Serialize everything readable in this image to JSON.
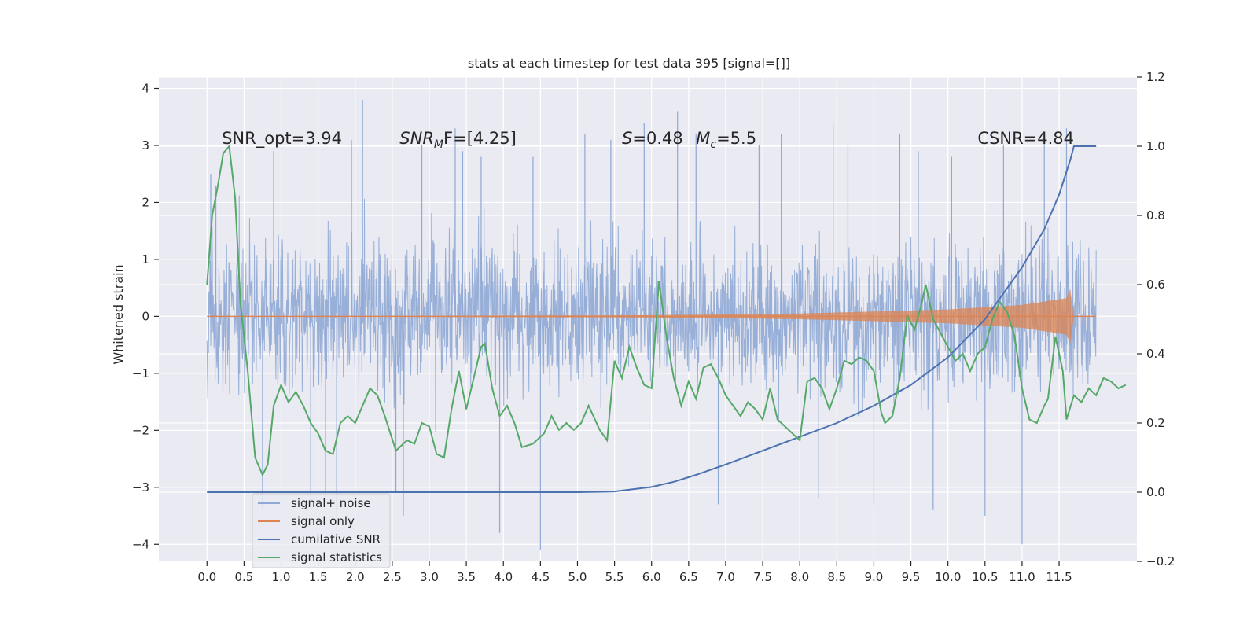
{
  "chart_data": {
    "type": "line",
    "title": "stats at each timestep for test data 395 [signal=[]]",
    "ylabel": "Whitened strain",
    "ylim": [
      -4.3,
      4.2
    ],
    "y2lim": [
      -0.2,
      1.2
    ],
    "xlim": [
      -0.65,
      12.55
    ],
    "xticks": [
      "0.0",
      "0.5",
      "1.0",
      "1.5",
      "2.0",
      "2.5",
      "3.0",
      "3.5",
      "4.0",
      "4.5",
      "5.0",
      "5.5",
      "6.0",
      "6.5",
      "7.0",
      "7.5",
      "8.0",
      "8.5",
      "9.0",
      "9.5",
      "10.0",
      "10.5",
      "11.0",
      "11.5"
    ],
    "yticks": [
      "4",
      "3",
      "2",
      "1",
      "0",
      "−1",
      "−2",
      "−3",
      "−4"
    ],
    "y2ticks": [
      "1.2",
      "1.0",
      "0.8",
      "0.6",
      "0.4",
      "0.2",
      "0.0",
      "−0.2"
    ],
    "grid": true,
    "legend_placement": "lower-left",
    "annotations": [
      {
        "x": 0.2,
        "y": 3.0,
        "text": "SNR_opt=3.94",
        "italic": false
      },
      {
        "x": 2.6,
        "y": 3.0,
        "text": "SNR",
        "sub": "M",
        "after": "F=[4.25]",
        "italic": true
      },
      {
        "x": 5.6,
        "y": 3.0,
        "text": "S",
        "after": "=0.48",
        "italic": true
      },
      {
        "x": 6.6,
        "y": 3.0,
        "text": "M",
        "sub": "c",
        "after": "=5.5",
        "italic": true
      },
      {
        "x": 10.4,
        "y": 3.0,
        "text": "CSNR=4.84",
        "italic": false
      }
    ],
    "series": [
      {
        "name": "signal+ noise",
        "color": "#8fa8d4",
        "axis": "left",
        "x_range": [
          0.0,
          12.0
        ],
        "envelope": {
          "upper_typical": 1.8,
          "lower_typical": -1.9,
          "max": 3.83,
          "min": -4.1
        },
        "spikes": [
          [
            0.05,
            2.5
          ],
          [
            0.12,
            2.3
          ],
          [
            0.75,
            -3.4
          ],
          [
            0.9,
            2.9
          ],
          [
            1.4,
            -3.3
          ],
          [
            1.6,
            -3.3
          ],
          [
            1.75,
            -3.7
          ],
          [
            1.95,
            3.1
          ],
          [
            2.1,
            3.8
          ],
          [
            2.55,
            -3.1
          ],
          [
            2.65,
            -3.5
          ],
          [
            2.9,
            3.0
          ],
          [
            3.35,
            3.3
          ],
          [
            3.45,
            2.9
          ],
          [
            3.7,
            2.8
          ],
          [
            3.95,
            -3.8
          ],
          [
            4.4,
            2.8
          ],
          [
            4.5,
            -4.1
          ],
          [
            5.1,
            3.2
          ],
          [
            5.45,
            3.1
          ],
          [
            5.9,
            3.4
          ],
          [
            6.35,
            3.6
          ],
          [
            6.6,
            3.2
          ],
          [
            6.9,
            -3.3
          ],
          [
            7.45,
            3.0
          ],
          [
            7.75,
            3.2
          ],
          [
            8.25,
            -3.2
          ],
          [
            8.45,
            3.4
          ],
          [
            8.65,
            3.0
          ],
          [
            9.0,
            -3.3
          ],
          [
            9.35,
            3.2
          ],
          [
            9.6,
            2.9
          ],
          [
            9.8,
            -3.4
          ],
          [
            10.05,
            2.8
          ],
          [
            10.5,
            -3.5
          ],
          [
            10.75,
            3.0
          ],
          [
            11.0,
            -4.0
          ],
          [
            11.3,
            3.1
          ],
          [
            11.6,
            3.3
          ]
        ]
      },
      {
        "name": "signal only",
        "color": "#dd8452",
        "axis": "left",
        "description_points": [
          [
            0.0,
            0.0
          ],
          [
            6.0,
            0.02
          ],
          [
            8.0,
            0.05
          ],
          [
            10.0,
            0.12
          ],
          [
            11.0,
            0.2
          ],
          [
            11.6,
            0.32
          ],
          [
            11.65,
            0.48
          ],
          [
            11.7,
            0.0
          ]
        ]
      },
      {
        "name": "cumilative SNR",
        "color": "#4c72b0",
        "axis": "right",
        "points": [
          [
            0.0,
            0.0
          ],
          [
            5.0,
            0.0
          ],
          [
            5.5,
            0.002
          ],
          [
            5.8,
            0.01
          ],
          [
            6.0,
            0.015
          ],
          [
            6.3,
            0.03
          ],
          [
            6.6,
            0.05
          ],
          [
            7.0,
            0.08
          ],
          [
            7.5,
            0.12
          ],
          [
            8.0,
            0.16
          ],
          [
            8.5,
            0.2
          ],
          [
            9.0,
            0.25
          ],
          [
            9.5,
            0.31
          ],
          [
            10.0,
            0.39
          ],
          [
            10.5,
            0.5
          ],
          [
            11.0,
            0.65
          ],
          [
            11.3,
            0.76
          ],
          [
            11.5,
            0.86
          ],
          [
            11.65,
            0.96
          ],
          [
            11.7,
            1.0
          ],
          [
            12.0,
            1.0
          ]
        ]
      },
      {
        "name": "signal statistics",
        "color": "#55a868",
        "axis": "right",
        "points": [
          [
            0.0,
            0.6
          ],
          [
            0.07,
            0.8
          ],
          [
            0.15,
            0.89
          ],
          [
            0.22,
            0.98
          ],
          [
            0.3,
            1.0
          ],
          [
            0.38,
            0.85
          ],
          [
            0.45,
            0.55
          ],
          [
            0.55,
            0.35
          ],
          [
            0.65,
            0.1
          ],
          [
            0.75,
            0.05
          ],
          [
            0.82,
            0.08
          ],
          [
            0.9,
            0.25
          ],
          [
            1.0,
            0.31
          ],
          [
            1.1,
            0.26
          ],
          [
            1.2,
            0.29
          ],
          [
            1.3,
            0.25
          ],
          [
            1.4,
            0.2
          ],
          [
            1.5,
            0.17
          ],
          [
            1.6,
            0.12
          ],
          [
            1.7,
            0.11
          ],
          [
            1.8,
            0.2
          ],
          [
            1.9,
            0.22
          ],
          [
            2.0,
            0.2
          ],
          [
            2.1,
            0.25
          ],
          [
            2.2,
            0.3
          ],
          [
            2.3,
            0.28
          ],
          [
            2.4,
            0.22
          ],
          [
            2.55,
            0.12
          ],
          [
            2.7,
            0.15
          ],
          [
            2.8,
            0.14
          ],
          [
            2.9,
            0.2
          ],
          [
            3.0,
            0.19
          ],
          [
            3.1,
            0.11
          ],
          [
            3.2,
            0.1
          ],
          [
            3.3,
            0.24
          ],
          [
            3.4,
            0.35
          ],
          [
            3.5,
            0.24
          ],
          [
            3.6,
            0.33
          ],
          [
            3.7,
            0.42
          ],
          [
            3.75,
            0.43
          ],
          [
            3.85,
            0.3
          ],
          [
            3.95,
            0.22
          ],
          [
            4.05,
            0.25
          ],
          [
            4.15,
            0.2
          ],
          [
            4.25,
            0.13
          ],
          [
            4.4,
            0.14
          ],
          [
            4.55,
            0.17
          ],
          [
            4.65,
            0.22
          ],
          [
            4.75,
            0.18
          ],
          [
            4.85,
            0.2
          ],
          [
            4.95,
            0.18
          ],
          [
            5.05,
            0.2
          ],
          [
            5.15,
            0.25
          ],
          [
            5.3,
            0.18
          ],
          [
            5.4,
            0.15
          ],
          [
            5.5,
            0.38
          ],
          [
            5.6,
            0.33
          ],
          [
            5.7,
            0.42
          ],
          [
            5.8,
            0.36
          ],
          [
            5.9,
            0.31
          ],
          [
            6.0,
            0.3
          ],
          [
            6.1,
            0.61
          ],
          [
            6.2,
            0.45
          ],
          [
            6.3,
            0.33
          ],
          [
            6.4,
            0.25
          ],
          [
            6.5,
            0.32
          ],
          [
            6.6,
            0.27
          ],
          [
            6.7,
            0.36
          ],
          [
            6.8,
            0.37
          ],
          [
            6.9,
            0.33
          ],
          [
            7.0,
            0.28
          ],
          [
            7.1,
            0.25
          ],
          [
            7.2,
            0.22
          ],
          [
            7.3,
            0.26
          ],
          [
            7.4,
            0.24
          ],
          [
            7.5,
            0.21
          ],
          [
            7.6,
            0.3
          ],
          [
            7.7,
            0.21
          ],
          [
            7.8,
            0.19
          ],
          [
            7.9,
            0.17
          ],
          [
            8.0,
            0.15
          ],
          [
            8.1,
            0.32
          ],
          [
            8.2,
            0.33
          ],
          [
            8.3,
            0.3
          ],
          [
            8.4,
            0.24
          ],
          [
            8.5,
            0.3
          ],
          [
            8.6,
            0.38
          ],
          [
            8.7,
            0.37
          ],
          [
            8.8,
            0.39
          ],
          [
            8.9,
            0.38
          ],
          [
            9.0,
            0.35
          ],
          [
            9.1,
            0.23
          ],
          [
            9.15,
            0.2
          ],
          [
            9.25,
            0.22
          ],
          [
            9.35,
            0.33
          ],
          [
            9.45,
            0.51
          ],
          [
            9.55,
            0.47
          ],
          [
            9.65,
            0.55
          ],
          [
            9.7,
            0.6
          ],
          [
            9.8,
            0.5
          ],
          [
            9.9,
            0.46
          ],
          [
            10.0,
            0.42
          ],
          [
            10.1,
            0.38
          ],
          [
            10.2,
            0.4
          ],
          [
            10.3,
            0.35
          ],
          [
            10.4,
            0.4
          ],
          [
            10.5,
            0.42
          ],
          [
            10.6,
            0.5
          ],
          [
            10.7,
            0.55
          ],
          [
            10.8,
            0.52
          ],
          [
            10.9,
            0.45
          ],
          [
            11.0,
            0.3
          ],
          [
            11.1,
            0.21
          ],
          [
            11.2,
            0.2
          ],
          [
            11.3,
            0.25
          ],
          [
            11.35,
            0.27
          ],
          [
            11.45,
            0.45
          ],
          [
            11.55,
            0.35
          ],
          [
            11.6,
            0.21
          ],
          [
            11.7,
            0.28
          ],
          [
            11.8,
            0.26
          ],
          [
            11.9,
            0.3
          ],
          [
            12.0,
            0.28
          ],
          [
            12.1,
            0.33
          ],
          [
            12.2,
            0.32
          ],
          [
            12.3,
            0.3
          ],
          [
            12.4,
            0.31
          ]
        ]
      }
    ]
  },
  "legend": {
    "items": [
      {
        "label": "signal+ noise",
        "color": "#8fa8d4"
      },
      {
        "label": "signal only",
        "color": "#dd8452"
      },
      {
        "label": "cumilative SNR",
        "color": "#4c72b0"
      },
      {
        "label": "signal statistics",
        "color": "#55a868"
      }
    ]
  },
  "colors": {
    "plot_background": "#eaeaf2",
    "grid": "#ffffff",
    "noise": "#8fa8d4",
    "signal": "#dd8452",
    "csnr": "#4c72b0",
    "stat": "#55a868"
  }
}
